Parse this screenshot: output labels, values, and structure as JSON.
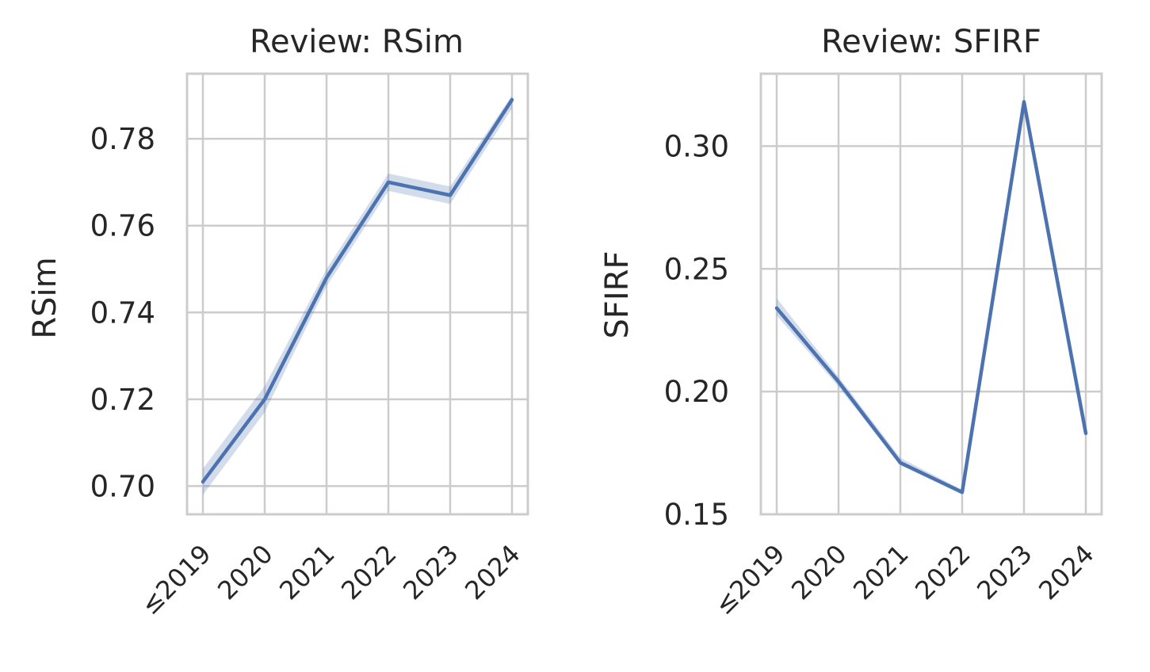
{
  "colors": {
    "line": "#4c72b0",
    "band": "#4c72b0",
    "grid": "#cccccc",
    "frame": "#cccccc",
    "text": "#262626"
  },
  "chart_data": [
    {
      "type": "line",
      "title": "Review: RSim",
      "xlabel": "",
      "ylabel": "RSim",
      "categories": [
        "≤2019",
        "2020",
        "2021",
        "2022",
        "2023",
        "2024"
      ],
      "values": [
        0.701,
        0.72,
        0.748,
        0.77,
        0.767,
        0.789
      ],
      "ci_low": [
        0.698,
        0.717,
        0.746,
        0.768,
        0.765,
        0.787
      ],
      "ci_high": [
        0.704,
        0.723,
        0.75,
        0.772,
        0.769,
        0.79
      ],
      "yticks": [
        0.7,
        0.72,
        0.74,
        0.76,
        0.78
      ],
      "ytick_labels": [
        "0.70",
        "0.72",
        "0.74",
        "0.76",
        "0.78"
      ],
      "ylim": [
        0.6935,
        0.795
      ],
      "grid": true,
      "legend": "none"
    },
    {
      "type": "line",
      "title": "Review: SFIRF",
      "xlabel": "",
      "ylabel": "SFIRF",
      "categories": [
        "≤2019",
        "2020",
        "2021",
        "2022",
        "2023",
        "2024"
      ],
      "values": [
        0.234,
        0.204,
        0.171,
        0.159,
        0.318,
        0.183
      ],
      "ci_low": [
        0.231,
        0.202,
        0.17,
        0.158,
        0.316,
        0.182
      ],
      "ci_high": [
        0.238,
        0.206,
        0.173,
        0.16,
        0.321,
        0.184
      ],
      "yticks": [
        0.15,
        0.2,
        0.25,
        0.3
      ],
      "ytick_labels": [
        "0.15",
        "0.20",
        "0.25",
        "0.30"
      ],
      "ylim": [
        0.15,
        0.3295
      ],
      "grid": true,
      "legend": "none"
    }
  ]
}
